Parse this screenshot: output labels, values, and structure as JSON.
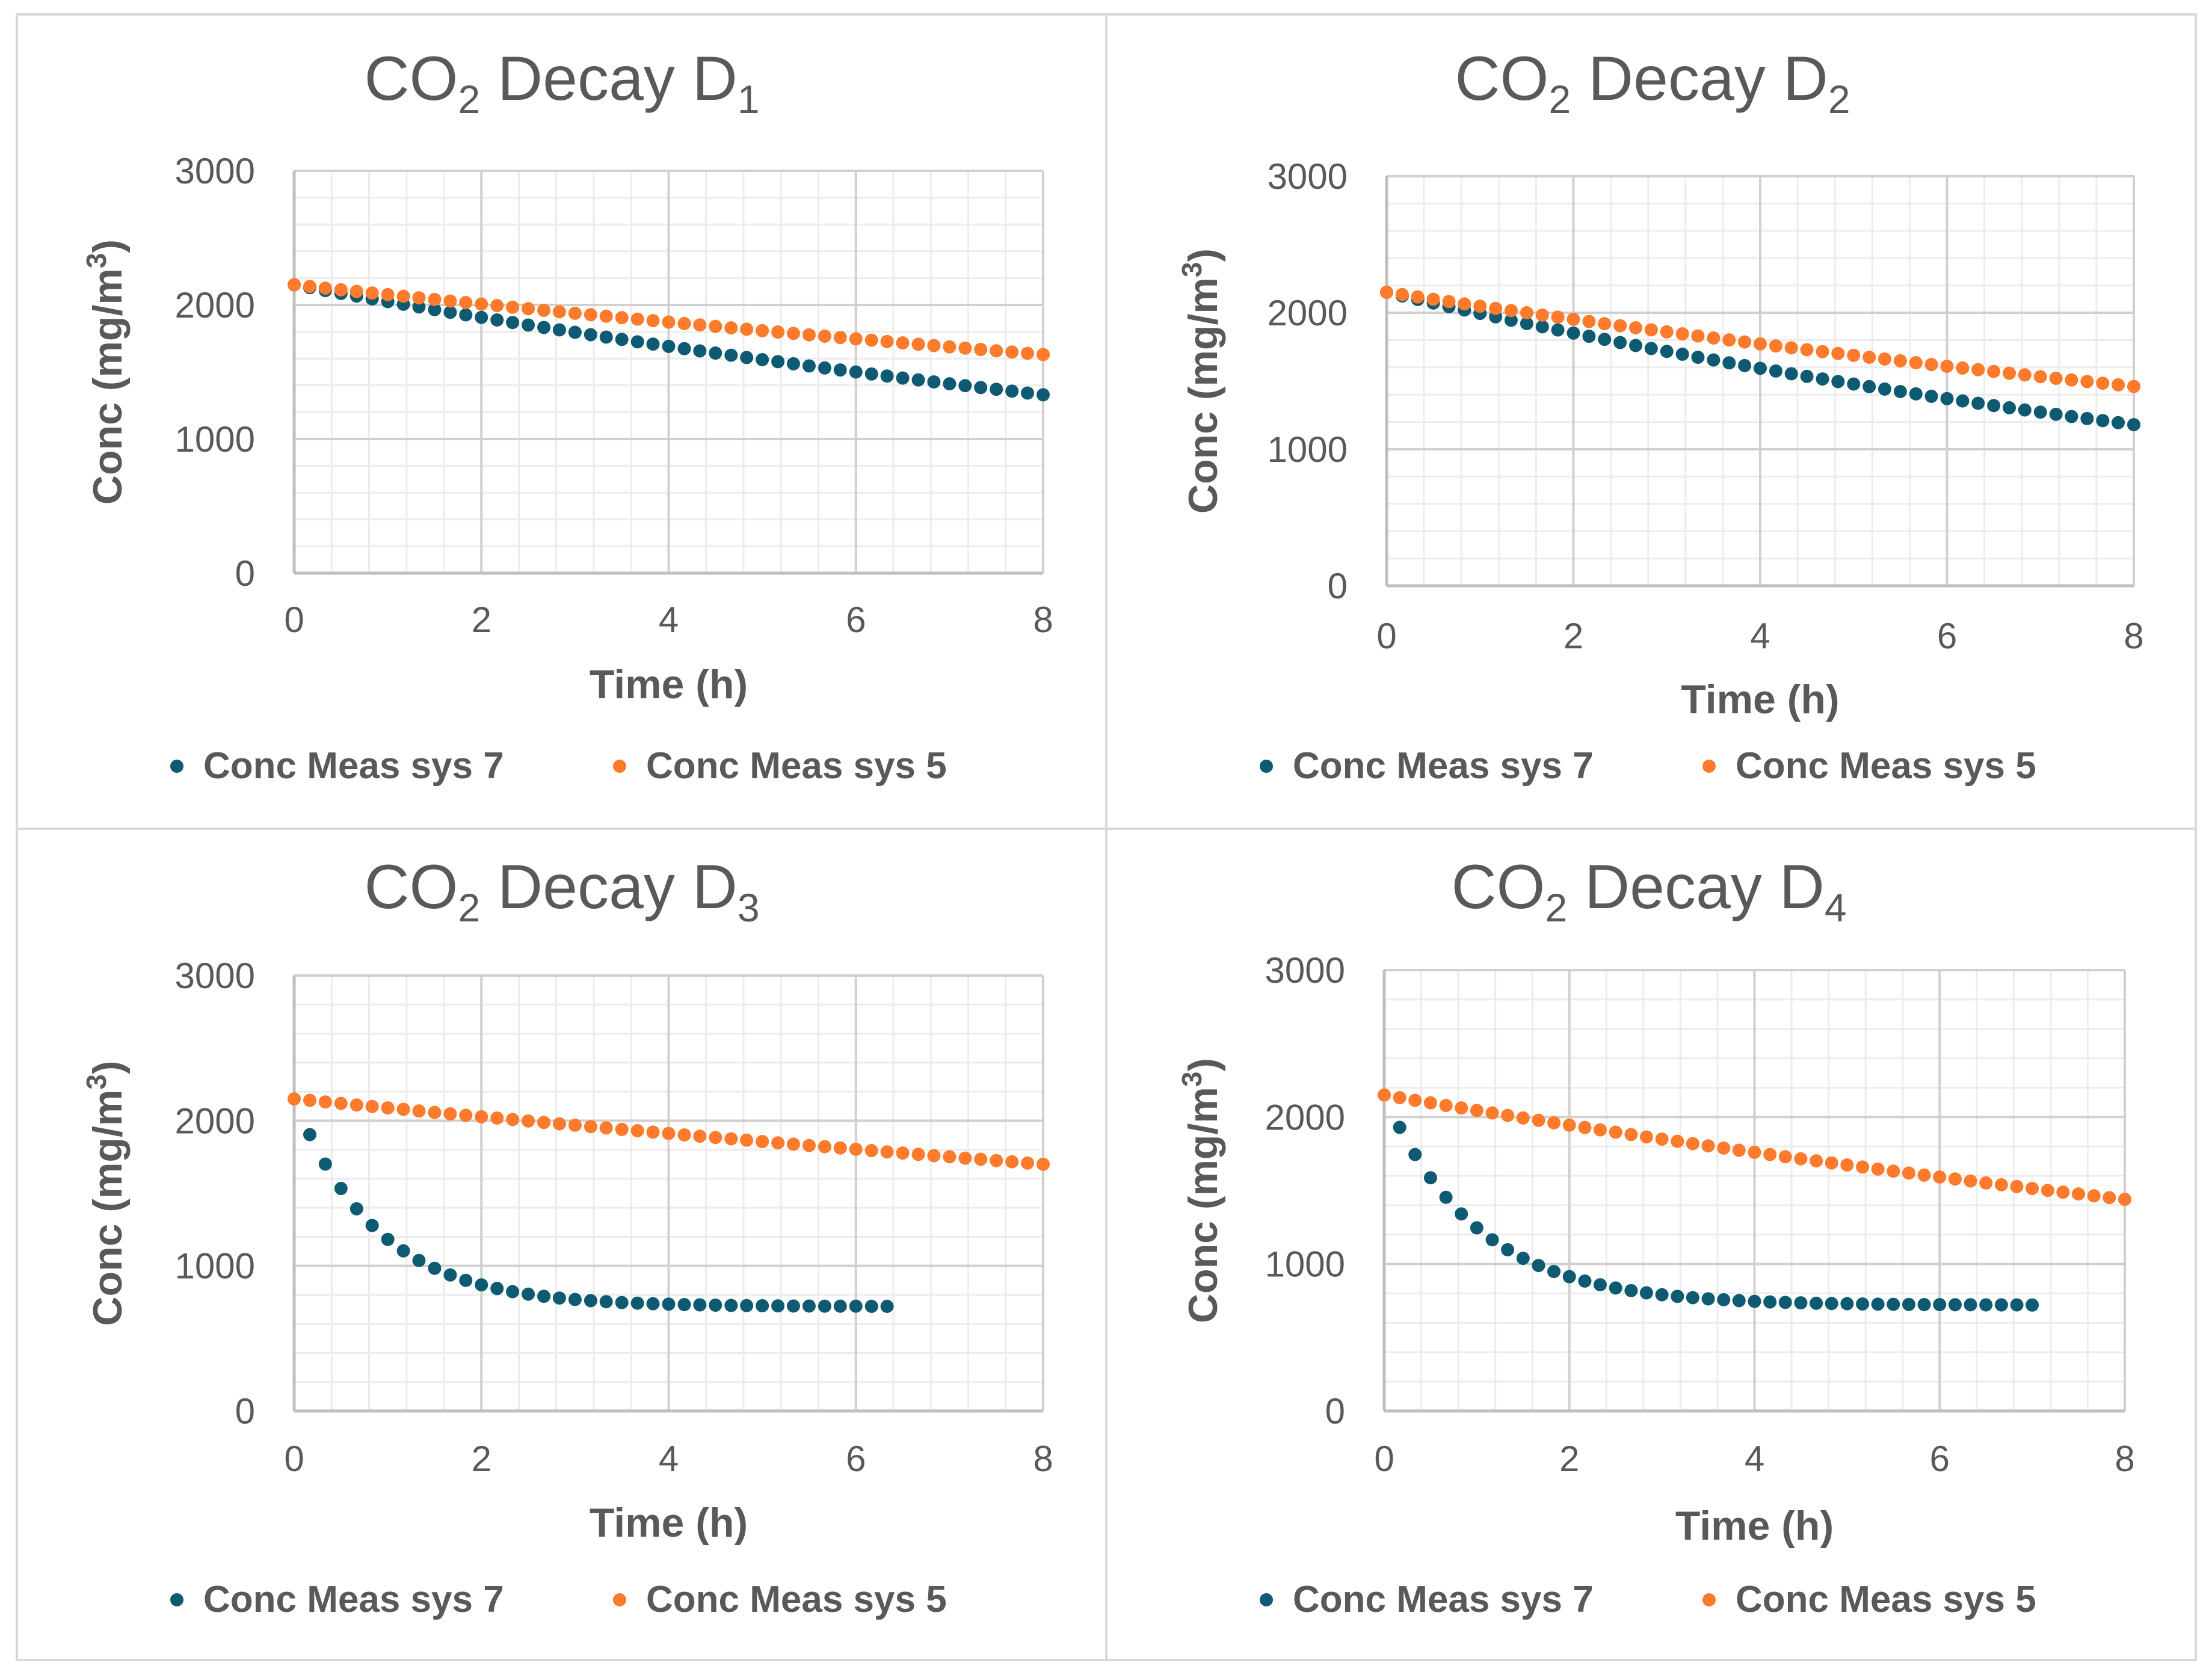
{
  "colors": {
    "sys7": "#0f5a73",
    "sys5": "#ff7a2a",
    "grid_major": "#d0d0d0",
    "grid_minor": "#ececec",
    "axis": "#bfbfbf",
    "text": "#595959"
  },
  "chart_data": [
    {
      "type": "scatter",
      "title": {
        "prefix": "CO",
        "sub1": "2",
        "middle": " Decay D",
        "sub2": "1"
      },
      "xlabel": "Time (h)",
      "ylabel": {
        "main": "Conc (mg/m",
        "sup": "3",
        "end": ")"
      },
      "xlim": [
        0,
        8
      ],
      "ylim": [
        0,
        3000
      ],
      "x_ticks": [
        "0",
        "2",
        "4",
        "6",
        "8"
      ],
      "y_ticks": [
        "0",
        "1000",
        "2000",
        "3000"
      ],
      "legend": [
        "Conc Meas sys 7",
        "Conc Meas sys 5"
      ],
      "series": [
        {
          "name": "Conc Meas sys 7",
          "model": "exp",
          "start": 2150,
          "end": 1330,
          "x_start": 0,
          "x_end": 8,
          "x_step": 0.16667
        },
        {
          "name": "Conc Meas sys 5",
          "model": "exp",
          "start": 2150,
          "end": 1630,
          "x_start": 0,
          "x_end": 8,
          "x_step": 0.16667
        }
      ]
    },
    {
      "type": "scatter",
      "title": {
        "prefix": "CO",
        "sub1": "2",
        "middle": " Decay D",
        "sub2": "2"
      },
      "xlabel": "Time (h)",
      "ylabel": {
        "main": "Conc (mg/m",
        "sup": "3",
        "end": ")"
      },
      "xlim": [
        0,
        8
      ],
      "ylim": [
        0,
        3000
      ],
      "x_ticks": [
        "0",
        "2",
        "4",
        "6",
        "8"
      ],
      "y_ticks": [
        "0",
        "1000",
        "2000",
        "3000"
      ],
      "legend": [
        "Conc Meas sys 7",
        "Conc Meas sys 5"
      ],
      "series": [
        {
          "name": "Conc Meas sys 7",
          "model": "exp",
          "start": 2150,
          "end": 1180,
          "x_start": 0,
          "x_end": 8,
          "x_step": 0.16667
        },
        {
          "name": "Conc Meas sys 5",
          "model": "exp",
          "start": 2150,
          "end": 1460,
          "x_start": 0,
          "x_end": 8,
          "x_step": 0.16667
        }
      ]
    },
    {
      "type": "scatter",
      "title": {
        "prefix": "CO",
        "sub1": "2",
        "middle": " Decay D",
        "sub2": "3"
      },
      "xlabel": "Time (h)",
      "ylabel": {
        "main": "Conc (mg/m",
        "sup": "3",
        "end": ")"
      },
      "xlim": [
        0,
        8
      ],
      "ylim": [
        0,
        3000
      ],
      "x_ticks": [
        "0",
        "2",
        "4",
        "6",
        "8"
      ],
      "y_ticks": [
        "0",
        "1000",
        "2000",
        "3000"
      ],
      "legend": [
        "Conc Meas sys 7",
        "Conc Meas sys 5"
      ],
      "series": [
        {
          "name": "Conc Meas sys 7",
          "model": "asymp",
          "c0": 2150,
          "floor": 720,
          "k": 1.13,
          "x_start": 0.1667,
          "x_end": 6.4,
          "x_step": 0.16667
        },
        {
          "name": "Conc Meas sys 5",
          "model": "exp",
          "start": 2150,
          "end": 1700,
          "x_start": 0,
          "x_end": 8,
          "x_step": 0.16667
        }
      ]
    },
    {
      "type": "scatter",
      "title": {
        "prefix": "CO",
        "sub1": "2",
        "middle": " Decay D",
        "sub2": "4"
      },
      "xlabel": "Time (h)",
      "ylabel": {
        "main": "Conc (mg/m",
        "sup": "3",
        "end": ")"
      },
      "xlim": [
        0,
        8
      ],
      "ylim": [
        0,
        3000
      ],
      "x_ticks": [
        "0",
        "2",
        "4",
        "6",
        "8"
      ],
      "y_ticks": [
        "0",
        "1000",
        "2000",
        "3000"
      ],
      "legend": [
        "Conc Meas sys 7",
        "Conc Meas sys 5"
      ],
      "series": [
        {
          "name": "Conc Meas sys 7",
          "model": "asymp",
          "c0": 2150,
          "floor": 720,
          "k": 1.0,
          "x_start": 0.1667,
          "x_end": 7.0,
          "x_step": 0.16667
        },
        {
          "name": "Conc Meas sys 5",
          "model": "exp",
          "start": 2150,
          "end": 1440,
          "x_start": 0,
          "x_end": 8,
          "x_step": 0.16667
        }
      ]
    }
  ]
}
